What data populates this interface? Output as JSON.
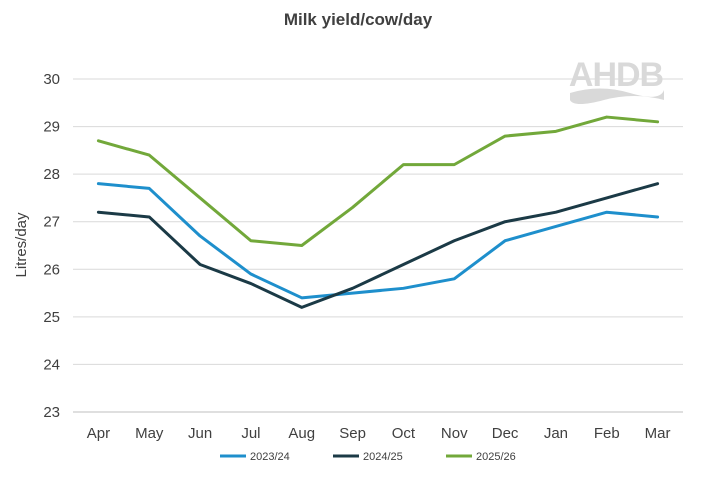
{
  "chart_data": {
    "type": "line",
    "title": "Milk yield/cow/day",
    "xlabel": "",
    "ylabel": "Litres/day",
    "categories": [
      "Apr",
      "May",
      "Jun",
      "Jul",
      "Aug",
      "Sep",
      "Oct",
      "Nov",
      "Dec",
      "Jan",
      "Feb",
      "Mar"
    ],
    "ylim": [
      23,
      30
    ],
    "yticks": [
      23,
      24,
      25,
      26,
      27,
      28,
      29,
      30
    ],
    "grid": true,
    "legend": "bottom",
    "series": [
      {
        "name": "2023/24",
        "color": "#1e8fcc",
        "values": [
          27.8,
          27.7,
          26.7,
          25.9,
          25.4,
          25.5,
          25.6,
          25.8,
          26.6,
          26.9,
          27.2,
          27.1
        ]
      },
      {
        "name": "2024/25",
        "color": "#1b3a46",
        "values": [
          27.2,
          27.1,
          26.1,
          25.7,
          25.2,
          25.6,
          26.1,
          26.6,
          27.0,
          27.2,
          27.5,
          27.8
        ]
      },
      {
        "name": "2025/26",
        "color": "#72a83a",
        "values": [
          28.7,
          28.4,
          27.5,
          26.6,
          26.5,
          27.3,
          28.2,
          28.2,
          28.8,
          28.9,
          29.2,
          29.1
        ]
      }
    ]
  },
  "logo": {
    "text": "AHDB",
    "color": "#d9d9d9",
    "icon": "ahdb-logo"
  }
}
